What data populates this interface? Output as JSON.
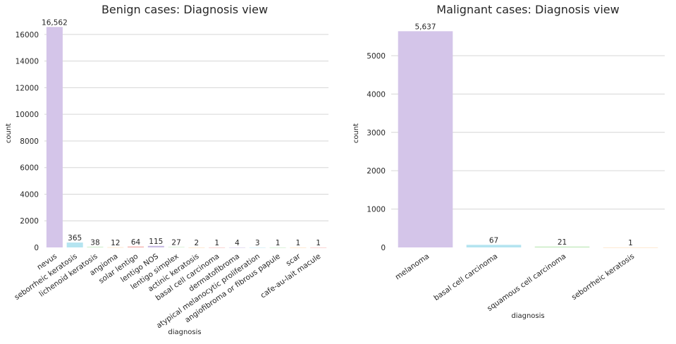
{
  "chart_data": [
    {
      "type": "bar",
      "title": "Benign cases: Diagnosis view",
      "xlabel": "diagnosis",
      "ylabel": "count",
      "ylim": [
        0,
        17000
      ],
      "yticks": [
        0,
        2000,
        4000,
        6000,
        8000,
        10000,
        12000,
        14000,
        16000
      ],
      "grid": true,
      "categories": [
        "nevus",
        "seborrheic keratosis",
        "lichenoid keratosis",
        "angioma",
        "solar lentigo",
        "lentigo NOS",
        "lentigo simplex",
        "actinic keratosis",
        "basal cell carcinoma",
        "dermatofibroma",
        "atypical melanocytic proliferation",
        "angiofibroma or fibrous papule",
        "scar",
        "cafe-au-lait macule"
      ],
      "values": [
        16562,
        365,
        38,
        12,
        64,
        115,
        27,
        2,
        1,
        4,
        3,
        1,
        1,
        1
      ],
      "value_labels": [
        "16,562",
        "365",
        "38",
        "12",
        "64",
        "115",
        "27",
        "2",
        "1",
        "4",
        "3",
        "1",
        "1",
        "1"
      ],
      "colors": [
        "#d4c5e9",
        "#b4e4f0",
        "#b9e6b4",
        "#fbd3a5",
        "#f5aaa5",
        "#c9bce3",
        "#b9e6b4",
        "#fbd3a5",
        "#f5aaa5",
        "#c9bce3",
        "#b4e4f0",
        "#b9e6b4",
        "#fbd3a5",
        "#f5aaa5"
      ]
    },
    {
      "type": "bar",
      "title": "Malignant cases: Diagnosis view",
      "xlabel": "diagnosis",
      "ylabel": "count",
      "ylim": [
        0,
        5900
      ],
      "yticks": [
        0,
        1000,
        2000,
        3000,
        4000,
        5000
      ],
      "grid": true,
      "categories": [
        "melanoma",
        "basal cell carcinoma",
        "squamous cell carcinoma",
        "seborrheic keratosis"
      ],
      "values": [
        5637,
        67,
        21,
        1
      ],
      "value_labels": [
        "5,637",
        "67",
        "21",
        "1"
      ],
      "colors": [
        "#d4c5e9",
        "#b4e4f0",
        "#b9e6b4",
        "#fbd3a5"
      ]
    }
  ]
}
